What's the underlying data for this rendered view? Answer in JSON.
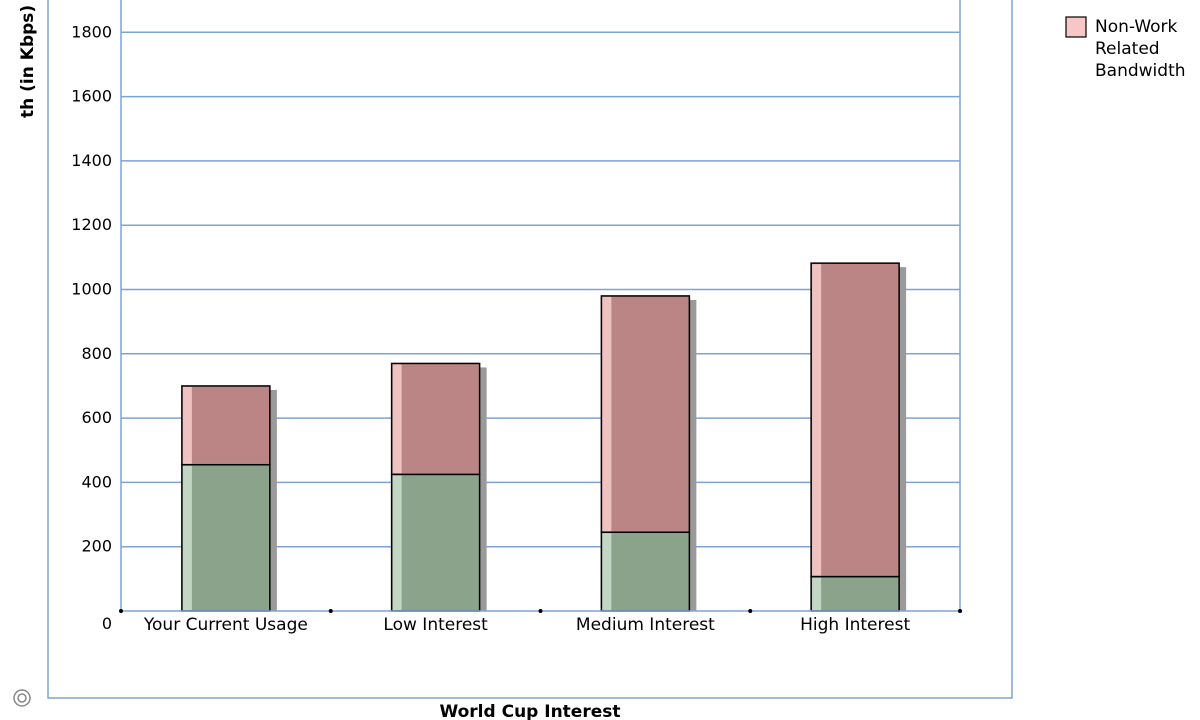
{
  "chart_data": {
    "type": "bar",
    "stacked": true,
    "categories": [
      "Your Current Usage",
      "Low Interest",
      "Medium Interest",
      "High Interest"
    ],
    "series": [
      {
        "name": "",
        "color": "#8aa38a",
        "values": [
          455,
          425,
          245,
          107
        ]
      },
      {
        "name": "Non-Work Related Bandwidth",
        "color": "#bc8585",
        "values": [
          245,
          345,
          735,
          975
        ]
      }
    ],
    "xlabel": "World Cup Interest",
    "ylabel": "th (in Kbps)",
    "ylim": [
      0,
      1900
    ],
    "yticks": [
      0,
      200,
      400,
      600,
      800,
      1000,
      1200,
      1400,
      1600,
      1800
    ],
    "grid": true,
    "legend_position": "top-right",
    "legend_lines": [
      "Non-Work",
      "Related",
      "Bandwidth"
    ],
    "legend_color": "#f7c6c6",
    "grid_color": "#7ea3d6",
    "footer_icon": "copyright-icon"
  }
}
